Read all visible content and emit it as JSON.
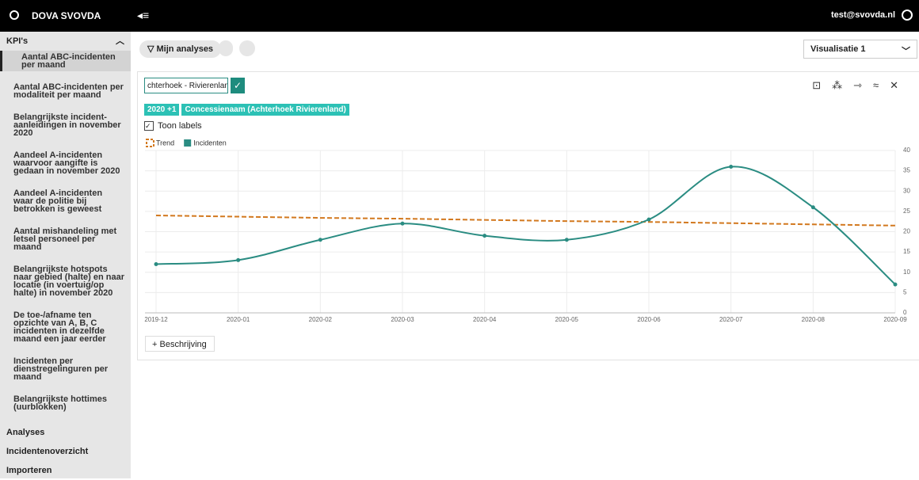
{
  "header": {
    "brand": "DOVA SVOVDA",
    "user": "test@svovda.nl"
  },
  "sidebar": {
    "section": "KPI's",
    "items": [
      "Aantal ABC-incidenten per maand",
      "Aantal ABC-incidenten per modaliteit per maand",
      "Belangrijkste incident-aanleidingen in november 2020",
      "Aandeel A-incidenten waarvoor aangifte is gedaan in november 2020",
      "Aandeel A-incidenten waar de politie bij betrokken is geweest",
      "Aantal mishandeling met letsel personeel per maand",
      "Belangrijkste hotspots naar gebied (halte) en naar locatie (in voertuig/op halte) in november 2020",
      "De toe-/afname ten opzichte van A, B, C incidenten in dezelfde maand een jaar eerder",
      "Incidenten per dienstregelinguren per maand",
      "Belangrijkste hottimes (uurblokken)"
    ],
    "links": [
      "Analyses",
      "Incidentenoverzicht",
      "Importeren"
    ]
  },
  "toolbar": {
    "analyses": "Mijn analyses",
    "select": "Visualisatie 1"
  },
  "panel": {
    "input": "chterhoek - Rivierenland",
    "chips": [
      "2020 +1",
      "Concessienaam (Achterhoek Rivierenland)"
    ],
    "checkbox": "Toon labels",
    "description": "Beschrijving"
  },
  "chart_data": {
    "type": "line",
    "categories": [
      "2019-12",
      "2020-01",
      "2020-02",
      "2020-03",
      "2020-04",
      "2020-05",
      "2020-06",
      "2020-07",
      "2020-08",
      "2020-09"
    ],
    "series": [
      {
        "name": "Trend",
        "color": "#d2781e",
        "dashed": true,
        "values": [
          24,
          23.7,
          23.4,
          23.2,
          22.9,
          22.6,
          22.4,
          22.1,
          21.8,
          21.5
        ]
      },
      {
        "name": "Incidenten",
        "color": "#2a8c82",
        "values": [
          12,
          13,
          18,
          22,
          19,
          18,
          23,
          36,
          26,
          7
        ]
      }
    ],
    "ylim": [
      0,
      40
    ],
    "yticks": [
      0,
      5,
      10,
      15,
      20,
      25,
      30,
      35,
      40
    ],
    "grid": true
  }
}
